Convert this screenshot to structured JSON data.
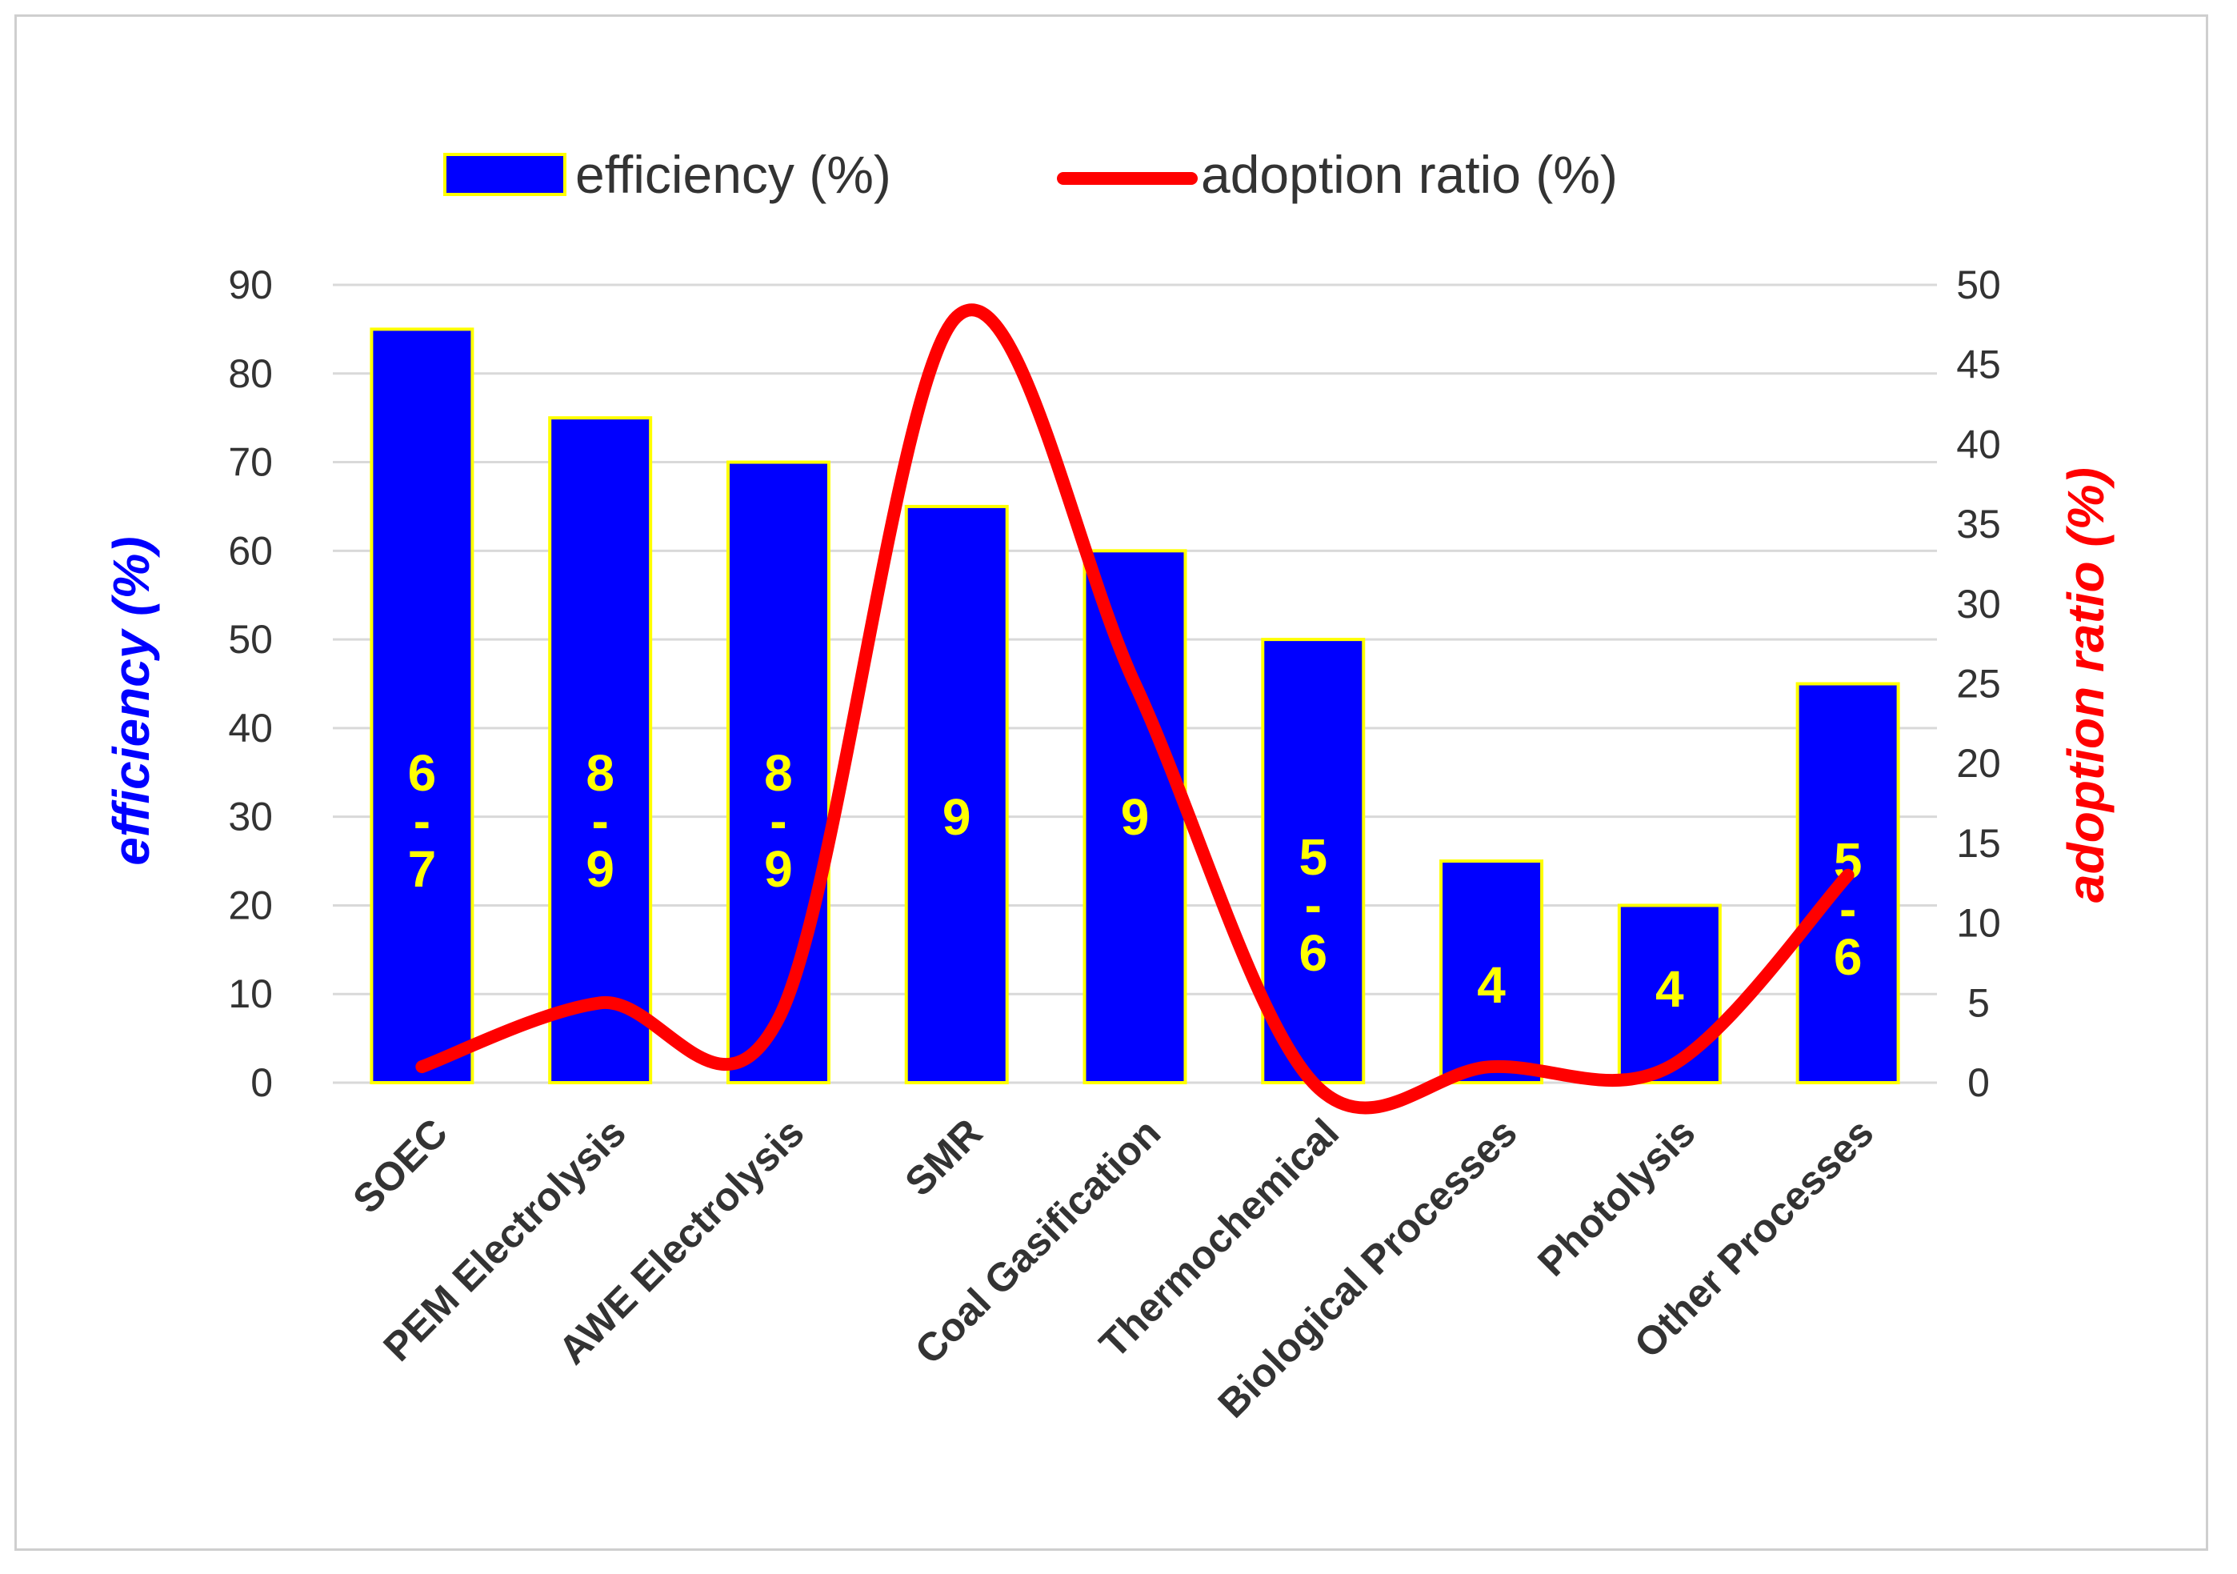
{
  "chart_data": {
    "type": "bar",
    "title": "",
    "categories": [
      "SOEC",
      "PEM Electrolysis",
      "AWE Electrolysis",
      "SMR",
      "Coal Gasification",
      "Thermochemical",
      "Biological Processes",
      "Photolysis",
      "Other Processes"
    ],
    "series": [
      {
        "name": "efficiency (%)",
        "type": "bar",
        "axis": "left",
        "color": "#0000ff",
        "edge_color": "#ffff00",
        "values": [
          85,
          75,
          70,
          65,
          60,
          50,
          25,
          20,
          45
        ]
      },
      {
        "name": "adoption ratio (%)",
        "type": "line",
        "smooth": true,
        "axis": "right",
        "color": "#ff0000",
        "values": [
          1,
          5,
          4,
          48,
          25,
          0,
          1,
          1,
          13
        ]
      }
    ],
    "bar_labels": [
      [
        "6",
        "-",
        "7"
      ],
      [
        "8",
        "-",
        "9"
      ],
      [
        "8",
        "-",
        "9"
      ],
      [
        "9"
      ],
      [
        "9"
      ],
      [
        "5",
        "-",
        "6"
      ],
      [
        "4"
      ],
      [
        "4"
      ],
      [
        "5",
        "-",
        "6"
      ]
    ],
    "ylabel": "efficiency (%)",
    "ylabel_color": "#0000ff",
    "y2label": "adoption ratio (%)",
    "y2label_color": "#ff0000",
    "ylim": [
      0,
      90
    ],
    "y_ticks": [
      "0",
      "10",
      "20",
      "30",
      "40",
      "50",
      "60",
      "70",
      "80",
      "90"
    ],
    "y2lim": [
      0,
      50
    ],
    "y2_ticks": [
      "0",
      "5",
      "10",
      "15",
      "20",
      "25",
      "30",
      "35",
      "40",
      "45",
      "50"
    ],
    "grid": true,
    "legend": "top-center"
  }
}
